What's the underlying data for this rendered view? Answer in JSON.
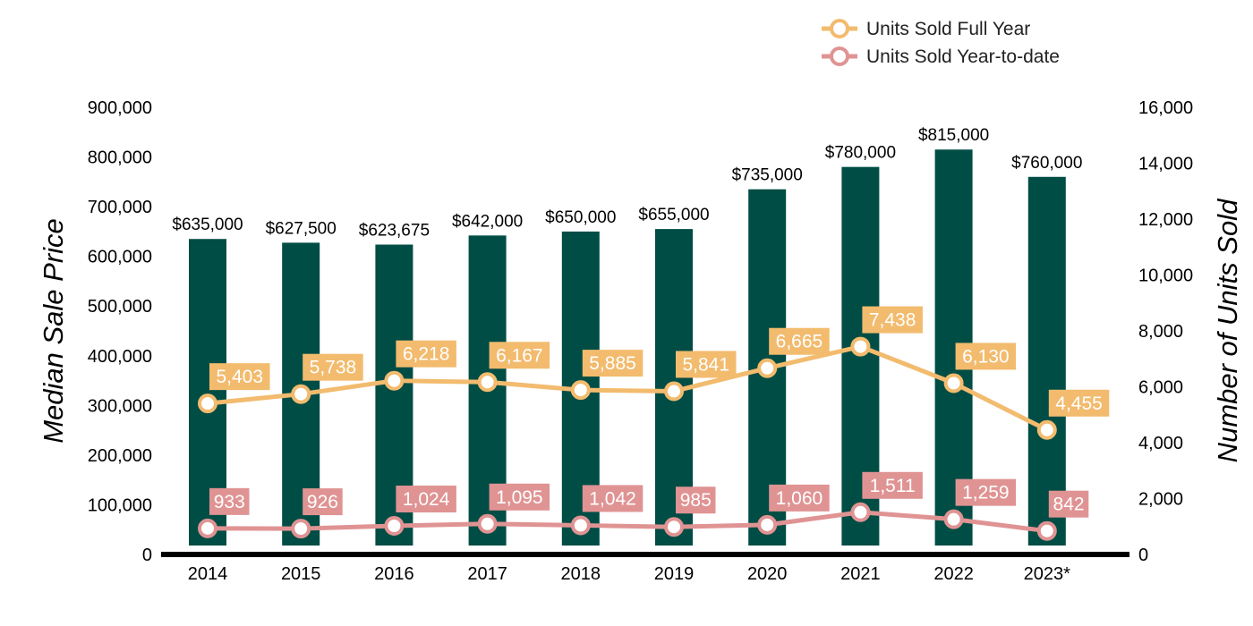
{
  "chart_data": {
    "type": "bar",
    "categories": [
      "2014",
      "2015",
      "2016",
      "2017",
      "2018",
      "2019",
      "2020",
      "2021",
      "2022",
      "2023*"
    ],
    "bars": {
      "values": [
        635000,
        627500,
        623675,
        642000,
        650000,
        655000,
        735000,
        780000,
        815000,
        760000
      ],
      "labels": [
        "$635,000",
        "$627,500",
        "$623,675",
        "$642,000",
        "$650,000",
        "$655,000",
        "$735,000",
        "$780,000",
        "$815,000",
        "$760,000"
      ],
      "axis": "left",
      "color": "#004d45"
    },
    "series": [
      {
        "name": "Units Sold Full Year",
        "type": "line",
        "axis": "right",
        "color": "#f2bb6e",
        "values": [
          5403,
          5738,
          6218,
          6167,
          5885,
          5841,
          6665,
          7438,
          6130,
          4455
        ],
        "labels": [
          "5,403",
          "5,738",
          "6,218",
          "6,167",
          "5,885",
          "5,841",
          "6,665",
          "7,438",
          "6,130",
          "4,455"
        ]
      },
      {
        "name": "Units Sold Year-to-date",
        "type": "line",
        "axis": "right",
        "color": "#e09393",
        "values": [
          933,
          926,
          1024,
          1095,
          1042,
          985,
          1060,
          1511,
          1259,
          842
        ],
        "labels": [
          "933",
          "926",
          "1,024",
          "1,095",
          "1,042",
          "985",
          "1,060",
          "1,511",
          "1,259",
          "842"
        ]
      }
    ],
    "ylabel": "Median Sale Price",
    "y2label": "Number of Units Sold",
    "ylim": [
      0,
      900000
    ],
    "y2lim": [
      0,
      16000
    ],
    "yticks": [
      "0",
      "100,000",
      "200,000",
      "300,000",
      "400,000",
      "500,000",
      "600,000",
      "700,000",
      "800,000",
      "900,000"
    ],
    "y2ticks": [
      "0",
      "2,000",
      "4,000",
      "6,000",
      "8,000",
      "10,000",
      "12,000",
      "14,000",
      "16,000"
    ],
    "grid": false,
    "legend_position": "top-right"
  }
}
